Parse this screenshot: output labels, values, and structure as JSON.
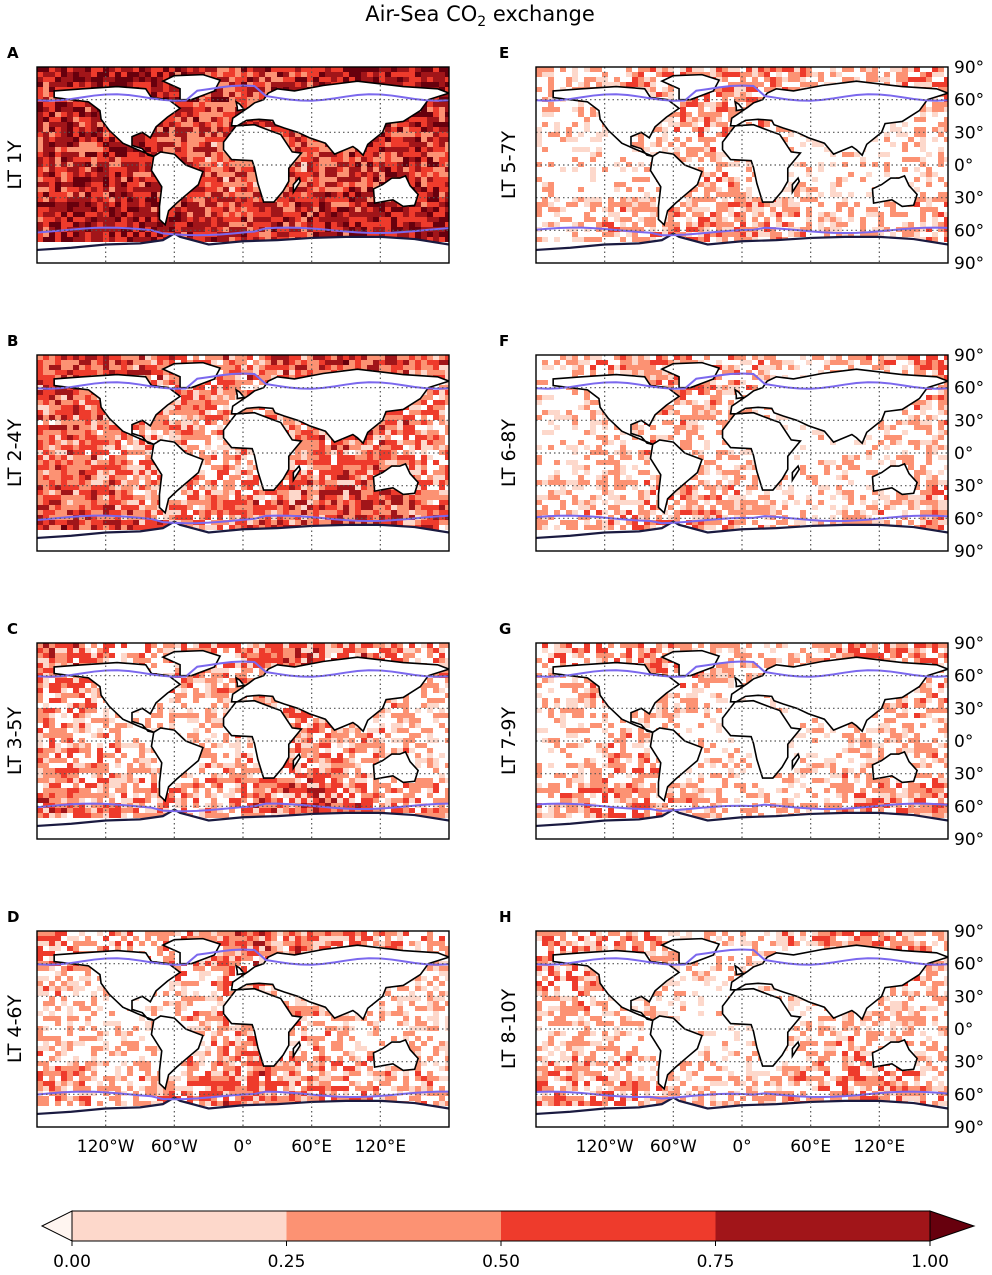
{
  "title": {
    "main": "Air-Sea CO",
    "sub": "2",
    "rest": " exchange"
  },
  "chart_data": {
    "type": "heatmap",
    "title": "Air-Sea CO2 exchange",
    "x_ticks": [
      "120°W",
      "60°W",
      "0°",
      "60°E",
      "120°E"
    ],
    "y_ticks": [
      "90°",
      "60°",
      "30°",
      "0°",
      "30°",
      "60°",
      "90°"
    ],
    "panels": [
      {
        "letter": "A",
        "label": "LT 1Y",
        "mean_level": 0.72
      },
      {
        "letter": "B",
        "label": "LT 2-4Y",
        "mean_level": 0.42
      },
      {
        "letter": "C",
        "label": "LT 3-5Y",
        "mean_level": 0.28
      },
      {
        "letter": "D",
        "label": "LT 4-6Y",
        "mean_level": 0.24
      },
      {
        "letter": "E",
        "label": "LT 5-7Y",
        "mean_level": 0.16
      },
      {
        "letter": "F",
        "label": "LT 6-8Y",
        "mean_level": 0.13
      },
      {
        "letter": "G",
        "label": "LT 7-9Y",
        "mean_level": 0.12
      },
      {
        "letter": "H",
        "label": "LT 8-10Y",
        "mean_level": 0.12
      }
    ],
    "colorbar": {
      "ticks": [
        "0.00",
        "0.25",
        "0.50",
        "0.75",
        "1.00"
      ],
      "bounds": [
        0,
        0.25,
        0.5,
        0.75,
        1.0
      ],
      "colors": [
        "#fdd8cb",
        "#fc9273",
        "#ee3b2c",
        "#a11519"
      ],
      "extend": "both",
      "under_color": "#fff5f0",
      "over_color": "#67000d"
    },
    "contours": {
      "ice_edge_color": "#7b68ee",
      "coast_color": "#000000"
    },
    "grid": "dotted"
  }
}
